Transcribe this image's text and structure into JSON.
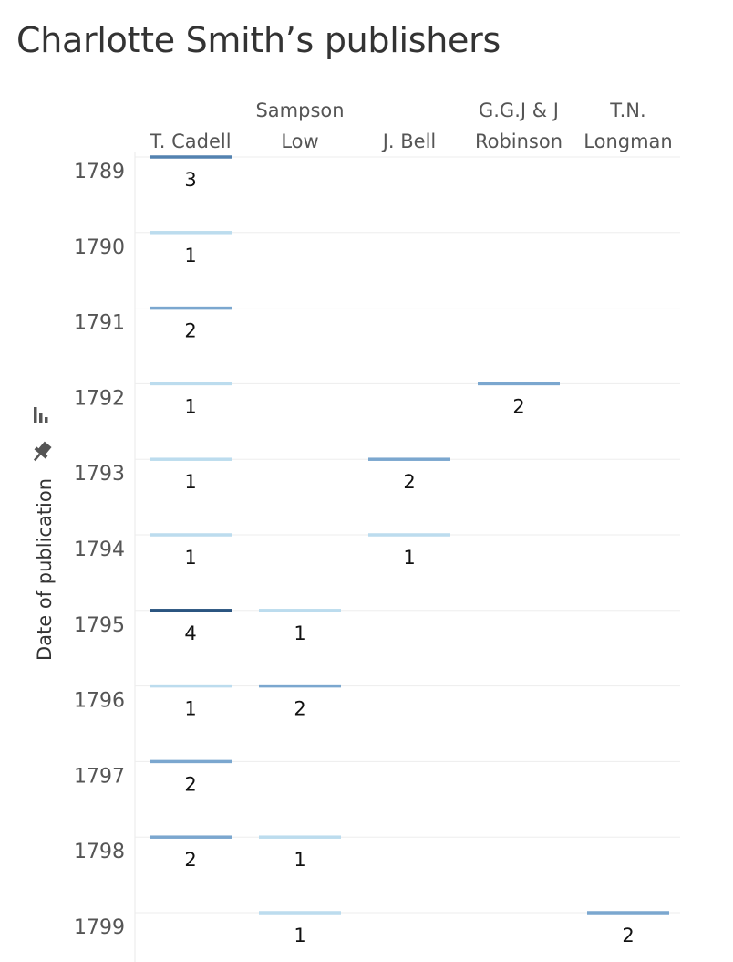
{
  "title": "Charlotte Smith’s publishers",
  "chart_data": {
    "type": "heatmap",
    "title": "Charlotte Smith’s publishers",
    "ylabel": "Date of publication",
    "xlabel": "",
    "columns": [
      {
        "lines": [
          "",
          "T. Cadell"
        ]
      },
      {
        "lines": [
          "Sampson",
          "Low"
        ]
      },
      {
        "lines": [
          "",
          "J. Bell"
        ]
      },
      {
        "lines": [
          "G.G.J & J",
          "Robinson"
        ]
      },
      {
        "lines": [
          "T.N.",
          "Longman"
        ]
      }
    ],
    "years": [
      "1789",
      "1790",
      "1791",
      "1792",
      "1793",
      "1794",
      "1795",
      "1796",
      "1797",
      "1798",
      "1799"
    ],
    "points": [
      {
        "col": 0,
        "year": "1789",
        "value": 3
      },
      {
        "col": 0,
        "year": "1790",
        "value": 1
      },
      {
        "col": 0,
        "year": "1791",
        "value": 2
      },
      {
        "col": 0,
        "year": "1792",
        "value": 1
      },
      {
        "col": 0,
        "year": "1793",
        "value": 1
      },
      {
        "col": 0,
        "year": "1794",
        "value": 1
      },
      {
        "col": 0,
        "year": "1795",
        "value": 4
      },
      {
        "col": 0,
        "year": "1796",
        "value": 1
      },
      {
        "col": 0,
        "year": "1797",
        "value": 2
      },
      {
        "col": 0,
        "year": "1798",
        "value": 2
      },
      {
        "col": 1,
        "year": "1795",
        "value": 1
      },
      {
        "col": 1,
        "year": "1796",
        "value": 2
      },
      {
        "col": 1,
        "year": "1798",
        "value": 1
      },
      {
        "col": 1,
        "year": "1799",
        "value": 1
      },
      {
        "col": 2,
        "year": "1793",
        "value": 2
      },
      {
        "col": 2,
        "year": "1794",
        "value": 1
      },
      {
        "col": 3,
        "year": "1792",
        "value": 2
      },
      {
        "col": 4,
        "year": "1799",
        "value": 2
      }
    ],
    "colors": {
      "1": "#bcdcee",
      "2": "#7ba7cf",
      "3": "#5382b0",
      "4": "#2b5580"
    },
    "grid": true
  },
  "icons": {
    "axis_sort": "bar-sort-icon",
    "axis_pin": "pin-icon"
  }
}
